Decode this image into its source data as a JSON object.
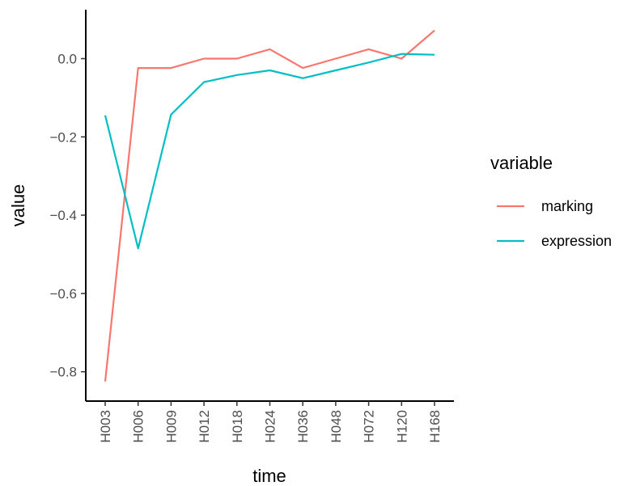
{
  "chart_data": {
    "type": "line",
    "xlabel": "time",
    "ylabel": "value",
    "categories": [
      "H003",
      "H006",
      "H009",
      "H012",
      "H018",
      "H024",
      "H036",
      "H048",
      "H072",
      "H120",
      "H168"
    ],
    "ylim": [
      -0.875,
      0.125
    ],
    "yticks": [
      0.0,
      -0.2,
      -0.4,
      -0.6,
      -0.8
    ],
    "ytick_labels": [
      "0.0",
      "−0.2",
      "−0.4",
      "−0.6",
      "−0.8"
    ],
    "grid": false,
    "legend": {
      "title": "variable",
      "position": "right"
    },
    "series": [
      {
        "name": "marking",
        "color": "#F8766D",
        "values": [
          -0.825,
          -0.024,
          -0.024,
          0.0,
          0.0,
          0.024,
          -0.024,
          0.0,
          0.024,
          0.0,
          0.072
        ]
      },
      {
        "name": "expression",
        "color": "#00BFC4",
        "values": [
          -0.145,
          -0.485,
          -0.143,
          -0.06,
          -0.042,
          -0.03,
          -0.05,
          -0.03,
          -0.01,
          0.012,
          0.01
        ]
      }
    ]
  }
}
